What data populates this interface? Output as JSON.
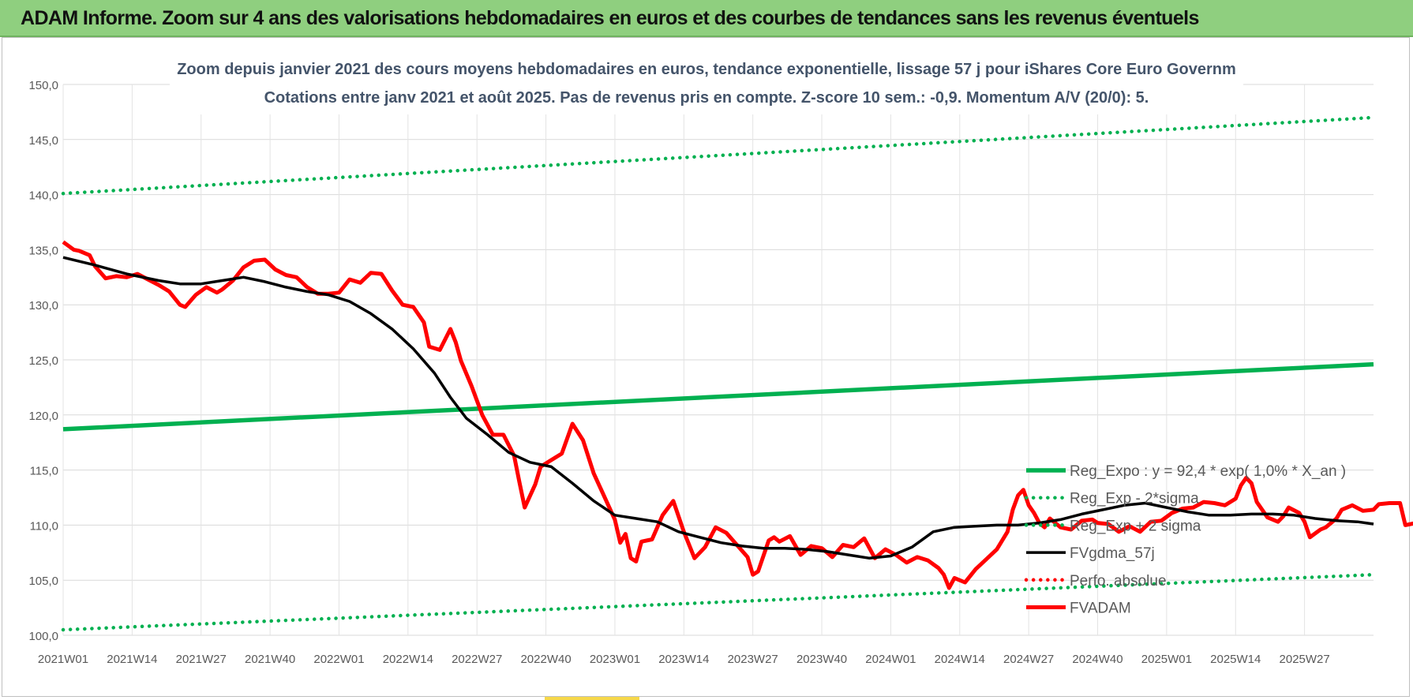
{
  "header": {
    "title": "ADAM Informe. Zoom sur 4 ans des valorisations hebdomadaires en euros et des courbes de tendances sans les revenus éventuels"
  },
  "chart_data": {
    "type": "line",
    "title": "Zoom depuis janvier 2021 des cours moyens hebdomadaires en euros, tendance exponentielle, lissage 57 j pour iShares Core Euro Governm",
    "subtitle": "Cotations entre janv 2021 et août 2025.  Pas de revenus pris en compte. Z-score 10 sem.: -0,9. Momentum A/V (20/0): 5.",
    "xlabel": "",
    "ylabel": "",
    "ylim": [
      100,
      150
    ],
    "yticks": [
      "100,0",
      "105,0",
      "110,0",
      "115,0",
      "120,0",
      "125,0",
      "130,0",
      "135,0",
      "140,0",
      "145,0",
      "150,0"
    ],
    "xticks": [
      "2021W01",
      "2021W14",
      "2021W27",
      "2021W40",
      "2022W01",
      "2022W14",
      "2022W27",
      "2022W40",
      "2023W01",
      "2023W14",
      "2023W27",
      "2023W40",
      "2024W01",
      "2024W14",
      "2024W27",
      "2024W40",
      "2025W01",
      "2025W14",
      "2025W27"
    ],
    "week_start": 0,
    "week_end": 247,
    "grid": true,
    "legend_position": "right",
    "colors": {
      "green": "#00b050",
      "black": "#000000",
      "red": "#ff0000"
    },
    "series": [
      {
        "name": "Reg_Expo : y = 92,4 * exp( 1,0% *  X_an )",
        "style": "solid-thick",
        "color": "#00b050",
        "points": [
          [
            0,
            118.7
          ],
          [
            247,
            124.6
          ]
        ]
      },
      {
        "name": "Reg_Exp - 2*sigma",
        "style": "dotted",
        "color": "#00b050",
        "points": [
          [
            0,
            100.5
          ],
          [
            247,
            105.5
          ]
        ]
      },
      {
        "name": "Reg_Exp + 2 sigma",
        "style": "dotted",
        "color": "#00b050",
        "points": [
          [
            0,
            140.1
          ],
          [
            247,
            147.0
          ]
        ]
      },
      {
        "name": "FVgdma_57j",
        "style": "solid",
        "color": "#000000",
        "points": [
          [
            0,
            134.3
          ],
          [
            6,
            133.6
          ],
          [
            12,
            132.8
          ],
          [
            18,
            132.2
          ],
          [
            22,
            131.9
          ],
          [
            26,
            131.9
          ],
          [
            30,
            132.2
          ],
          [
            34,
            132.5
          ],
          [
            38,
            132.1
          ],
          [
            42,
            131.6
          ],
          [
            46,
            131.2
          ],
          [
            50,
            130.9
          ],
          [
            54,
            130.3
          ],
          [
            58,
            129.2
          ],
          [
            62,
            127.8
          ],
          [
            66,
            126.0
          ],
          [
            70,
            123.8
          ],
          [
            73,
            121.6
          ],
          [
            76,
            119.7
          ],
          [
            80,
            118.2
          ],
          [
            84,
            116.6
          ],
          [
            88,
            115.7
          ],
          [
            92,
            115.3
          ],
          [
            96,
            113.8
          ],
          [
            100,
            112.2
          ],
          [
            104,
            110.9
          ],
          [
            108,
            110.6
          ],
          [
            112,
            110.3
          ],
          [
            116,
            109.4
          ],
          [
            120,
            108.9
          ],
          [
            124,
            108.4
          ],
          [
            128,
            108.1
          ],
          [
            132,
            107.9
          ],
          [
            136,
            107.9
          ],
          [
            140,
            107.8
          ],
          [
            144,
            107.6
          ],
          [
            148,
            107.3
          ],
          [
            152,
            107.0
          ],
          [
            156,
            107.2
          ],
          [
            160,
            108.0
          ],
          [
            164,
            109.4
          ],
          [
            168,
            109.8
          ],
          [
            172,
            109.9
          ],
          [
            176,
            110.0
          ],
          [
            180,
            110.0
          ],
          [
            184,
            110.2
          ],
          [
            188,
            110.5
          ],
          [
            192,
            111.0
          ],
          [
            196,
            111.4
          ],
          [
            200,
            111.8
          ],
          [
            204,
            112.0
          ],
          [
            208,
            111.6
          ],
          [
            212,
            111.2
          ],
          [
            216,
            110.9
          ],
          [
            220,
            110.9
          ],
          [
            224,
            111.0
          ],
          [
            228,
            111.0
          ],
          [
            232,
            110.9
          ],
          [
            236,
            110.6
          ],
          [
            240,
            110.4
          ],
          [
            244,
            110.3
          ],
          [
            247,
            110.1
          ]
        ]
      },
      {
        "name": "Perfo. absolue",
        "style": "dotted",
        "color": "#ff0000",
        "points": []
      },
      {
        "name": "FVADAM",
        "style": "solid-thick",
        "color": "#ff0000",
        "points": [
          [
            0,
            135.7
          ],
          [
            2,
            135.0
          ],
          [
            3,
            134.9
          ],
          [
            5,
            134.5
          ],
          [
            6,
            133.5
          ],
          [
            8,
            132.4
          ],
          [
            10,
            132.6
          ],
          [
            12,
            132.5
          ],
          [
            14,
            132.8
          ],
          [
            16,
            132.3
          ],
          [
            18,
            131.8
          ],
          [
            20,
            131.2
          ],
          [
            22,
            130.0
          ],
          [
            23,
            129.8
          ],
          [
            25,
            130.9
          ],
          [
            27,
            131.6
          ],
          [
            29,
            131.1
          ],
          [
            30,
            131.4
          ],
          [
            32,
            132.2
          ],
          [
            34,
            133.4
          ],
          [
            36,
            134.0
          ],
          [
            38,
            134.1
          ],
          [
            40,
            133.2
          ],
          [
            42,
            132.7
          ],
          [
            44,
            132.5
          ],
          [
            46,
            131.6
          ],
          [
            48,
            131.0
          ],
          [
            50,
            131.0
          ],
          [
            52,
            131.1
          ],
          [
            54,
            132.3
          ],
          [
            56,
            132.0
          ],
          [
            58,
            132.9
          ],
          [
            60,
            132.8
          ],
          [
            62,
            131.3
          ],
          [
            64,
            130.0
          ],
          [
            66,
            129.8
          ],
          [
            68,
            128.4
          ],
          [
            69,
            126.2
          ],
          [
            71,
            125.9
          ],
          [
            73,
            127.8
          ],
          [
            74,
            126.6
          ],
          [
            75,
            124.9
          ],
          [
            77,
            122.6
          ],
          [
            79,
            120.0
          ],
          [
            81,
            118.2
          ],
          [
            83,
            118.2
          ],
          [
            85,
            116.3
          ],
          [
            86,
            113.9
          ],
          [
            87,
            111.6
          ],
          [
            89,
            113.7
          ],
          [
            90,
            115.3
          ],
          [
            92,
            115.9
          ],
          [
            94,
            116.5
          ],
          [
            96,
            119.2
          ],
          [
            98,
            117.7
          ],
          [
            100,
            114.7
          ],
          [
            102,
            112.6
          ],
          [
            104,
            110.5
          ],
          [
            105,
            108.4
          ],
          [
            106,
            109.2
          ],
          [
            107,
            107.0
          ],
          [
            108,
            106.7
          ],
          [
            109,
            108.5
          ],
          [
            111,
            108.7
          ],
          [
            113,
            110.9
          ],
          [
            115,
            112.2
          ],
          [
            117,
            109.4
          ],
          [
            119,
            107.0
          ],
          [
            121,
            108.0
          ],
          [
            123,
            109.8
          ],
          [
            125,
            109.3
          ],
          [
            127,
            108.2
          ],
          [
            129,
            107.1
          ],
          [
            130,
            105.5
          ],
          [
            131,
            105.8
          ],
          [
            133,
            108.6
          ],
          [
            134,
            108.9
          ],
          [
            135,
            108.5
          ],
          [
            137,
            109.0
          ],
          [
            139,
            107.3
          ],
          [
            141,
            108.1
          ],
          [
            143,
            107.9
          ],
          [
            145,
            107.1
          ],
          [
            147,
            108.2
          ],
          [
            149,
            108.0
          ],
          [
            151,
            108.8
          ],
          [
            153,
            107.0
          ],
          [
            155,
            107.8
          ],
          [
            157,
            107.3
          ],
          [
            159,
            106.6
          ],
          [
            161,
            107.1
          ],
          [
            163,
            106.8
          ],
          [
            165,
            106.1
          ],
          [
            166,
            105.5
          ],
          [
            167,
            104.3
          ],
          [
            168,
            105.2
          ],
          [
            170,
            104.8
          ],
          [
            172,
            106.0
          ],
          [
            174,
            106.9
          ],
          [
            176,
            107.8
          ],
          [
            178,
            109.4
          ],
          [
            179,
            111.4
          ],
          [
            180,
            112.7
          ],
          [
            181,
            113.2
          ],
          [
            182,
            111.8
          ],
          [
            183,
            111.1
          ],
          [
            184,
            110.2
          ],
          [
            185,
            109.8
          ],
          [
            186,
            110.6
          ],
          [
            188,
            109.8
          ],
          [
            190,
            109.6
          ],
          [
            192,
            110.4
          ],
          [
            194,
            110.5
          ],
          [
            195,
            110.2
          ],
          [
            197,
            110.1
          ],
          [
            199,
            109.4
          ],
          [
            201,
            109.9
          ],
          [
            203,
            109.4
          ],
          [
            205,
            110.3
          ],
          [
            207,
            110.4
          ],
          [
            209,
            111.1
          ],
          [
            211,
            111.5
          ],
          [
            213,
            111.6
          ],
          [
            215,
            112.1
          ],
          [
            217,
            112.0
          ],
          [
            219,
            111.8
          ],
          [
            221,
            112.4
          ],
          [
            222,
            113.6
          ],
          [
            223,
            114.3
          ],
          [
            224,
            113.8
          ],
          [
            225,
            112.1
          ],
          [
            227,
            110.7
          ],
          [
            229,
            110.3
          ],
          [
            230,
            110.8
          ],
          [
            231,
            111.6
          ],
          [
            233,
            111.1
          ],
          [
            234,
            110.3
          ],
          [
            235,
            108.9
          ],
          [
            237,
            109.6
          ],
          [
            238,
            109.8
          ],
          [
            240,
            110.6
          ],
          [
            241,
            111.4
          ],
          [
            243,
            111.8
          ],
          [
            245,
            111.3
          ],
          [
            247,
            111.4
          ],
          [
            248,
            111.9
          ],
          [
            250,
            112.0
          ],
          [
            252,
            112.0
          ],
          [
            253,
            110.0
          ],
          [
            255,
            110.2
          ],
          [
            257,
            110.6
          ],
          [
            259,
            110.0
          ],
          [
            261,
            109.8
          ]
        ]
      }
    ]
  }
}
